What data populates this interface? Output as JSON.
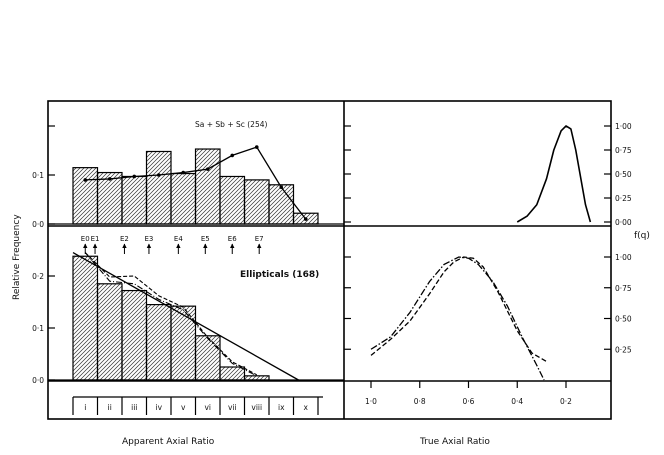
{
  "chart_data": [
    {
      "type": "bar",
      "panel": "spirals-observed",
      "title": "Sa + Sb + Sc (254)",
      "ylabel": "Relative Frequency",
      "ylim": [
        0,
        0.2
      ],
      "yticks": [
        {
          "v": 0,
          "label": "0·0"
        },
        {
          "v": 0.1,
          "label": "0·1"
        },
        {
          "v": 0.2,
          "label": ""
        }
      ],
      "categories": [
        "i",
        "ii",
        "iii",
        "iv",
        "v",
        "vi",
        "vii",
        "viii",
        "ix",
        "x"
      ],
      "values": [
        0.115,
        0.105,
        0.097,
        0.148,
        0.103,
        0.153,
        0.097,
        0.09,
        0.08,
        0.022
      ],
      "model_line": [
        0.09,
        0.092,
        0.097,
        0.1,
        0.105,
        0.112,
        0.14,
        0.157,
        0.075,
        0.01
      ]
    },
    {
      "type": "line",
      "panel": "spirals-true",
      "ylabel": "f(q)",
      "ylim": [
        0,
        1.0
      ],
      "yticks": [
        {
          "v": 0,
          "label": "0·00"
        },
        {
          "v": 0.25,
          "label": "0·25"
        },
        {
          "v": 0.5,
          "label": "0·50"
        },
        {
          "v": 0.75,
          "label": "0·75"
        },
        {
          "v": 1.0,
          "label": "1·00"
        }
      ],
      "x": [
        0.4,
        0.36,
        0.32,
        0.28,
        0.25,
        0.22,
        0.2,
        0.18,
        0.16,
        0.12,
        0.1
      ],
      "y": [
        0.0,
        0.06,
        0.18,
        0.45,
        0.75,
        0.95,
        1.0,
        0.97,
        0.75,
        0.18,
        0.0
      ]
    },
    {
      "type": "bar",
      "panel": "ellipticals-observed",
      "title": "Ellipticals (168)",
      "ylim": [
        0,
        0.3
      ],
      "yticks": [
        {
          "v": 0,
          "label": "0·0"
        },
        {
          "v": 0.1,
          "label": "0·1"
        },
        {
          "v": 0.2,
          "label": "0·2"
        }
      ],
      "categories": [
        "i",
        "ii",
        "iii",
        "iv",
        "v",
        "vi",
        "vii",
        "viii",
        "ix",
        "x"
      ],
      "values": [
        0.238,
        0.185,
        0.172,
        0.145,
        0.142,
        0.085,
        0.025,
        0.008,
        0,
        0
      ],
      "class_markers": [
        "E0",
        "E1",
        "E2",
        "E3",
        "E4",
        "E5",
        "E6",
        "E7"
      ],
      "class_positions": [
        0.5,
        0.9,
        2.1,
        3.1,
        4.3,
        5.4,
        6.5,
        7.6
      ],
      "fit_line": [
        [
          0,
          0.245
        ],
        [
          9,
          0
        ]
      ],
      "dashed_line": [
        [
          0,
          0.245
        ],
        [
          1,
          0.198
        ],
        [
          2,
          0.2
        ],
        [
          3,
          0.162
        ],
        [
          4,
          0.14
        ],
        [
          5,
          0.082
        ],
        [
          6,
          0.035
        ],
        [
          7,
          0.01
        ]
      ],
      "dashdot_line": [
        [
          0,
          0.245
        ],
        [
          1,
          0.19
        ],
        [
          2,
          0.185
        ],
        [
          3,
          0.155
        ],
        [
          4,
          0.135
        ],
        [
          5,
          0.08
        ],
        [
          6,
          0.032
        ],
        [
          7,
          0.008
        ]
      ]
    },
    {
      "type": "line",
      "panel": "ellipticals-true",
      "ylim": [
        0,
        1.0
      ],
      "yticks": [
        {
          "v": 0.25,
          "label": "0·25"
        },
        {
          "v": 0.5,
          "label": "0·50"
        },
        {
          "v": 0.75,
          "label": "0·75"
        },
        {
          "v": 1.0,
          "label": "1·00"
        }
      ],
      "series": [
        {
          "name": "dash",
          "x": [
            1.0,
            0.92,
            0.84,
            0.76,
            0.7,
            0.66,
            0.62,
            0.58,
            0.54,
            0.48,
            0.4,
            0.34,
            0.28
          ],
          "y": [
            0.2,
            0.33,
            0.48,
            0.7,
            0.88,
            0.96,
            1.0,
            0.99,
            0.92,
            0.72,
            0.4,
            0.22,
            0.15
          ]
        },
        {
          "name": "dashdot",
          "x": [
            1.0,
            0.92,
            0.84,
            0.76,
            0.7,
            0.64,
            0.6,
            0.56,
            0.5,
            0.44,
            0.38,
            0.32,
            0.29
          ],
          "y": [
            0.25,
            0.35,
            0.55,
            0.8,
            0.94,
            1.0,
            0.99,
            0.94,
            0.8,
            0.6,
            0.35,
            0.12,
            0.0
          ]
        }
      ]
    }
  ],
  "labels": {
    "ylabel_left": "Relative Frequency",
    "ylabel_right": "f(q)",
    "xlabel_left": "Apparent Axial Ratio",
    "xlabel_right": "True Axial Ratio",
    "true_axis_ticks": [
      "1·0",
      "0·8",
      "0·6",
      "0·4",
      "0·2"
    ],
    "true_axis_values": [
      1.0,
      0.8,
      0.6,
      0.4,
      0.2
    ]
  }
}
